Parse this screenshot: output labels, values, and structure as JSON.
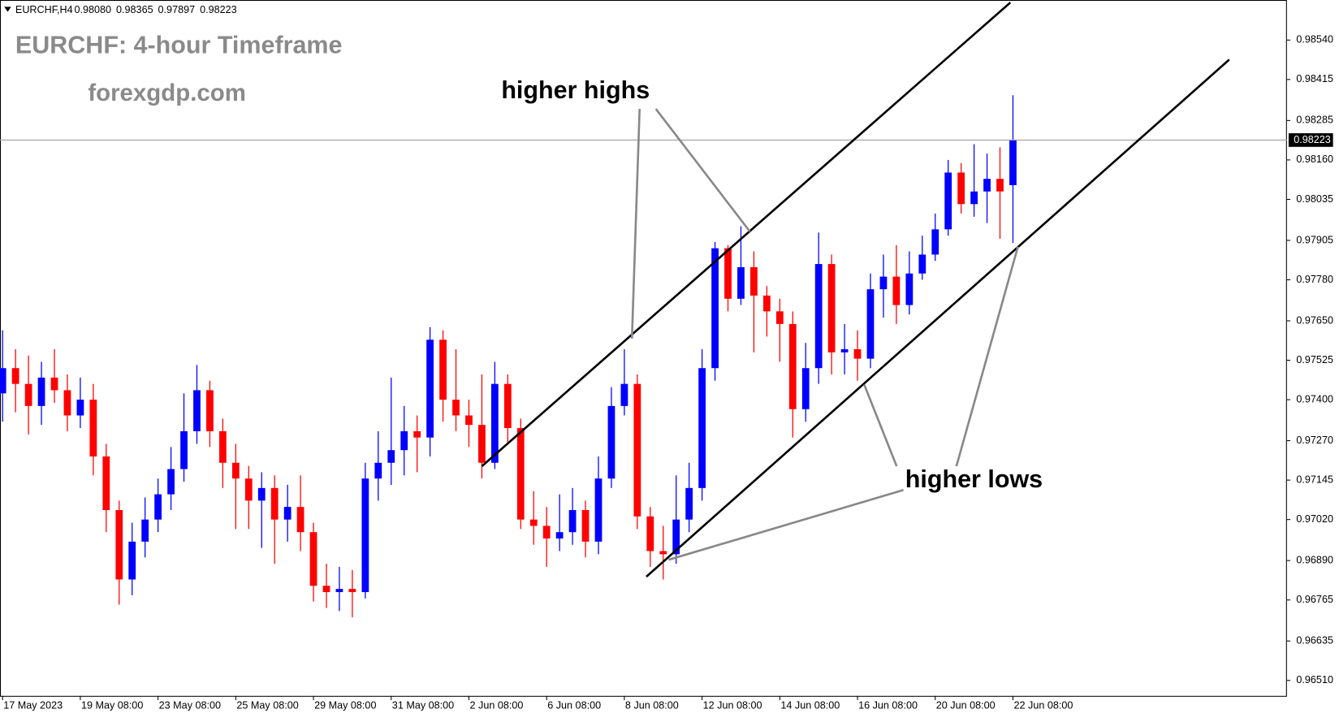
{
  "chart_data": {
    "type": "candlestick",
    "symbol": "EURCHF,H4",
    "quote_labels": [
      "0.98080",
      "0.98365",
      "0.97897",
      "0.98223"
    ],
    "title": "EURCHF: 4-hour Timeframe",
    "subtitle": "forexgdp.com",
    "up_color": "#0000ff",
    "down_color": "#ff0000",
    "open": [
      0.9742,
      0.975,
      0.9745,
      0.9738,
      0.9747,
      0.9743,
      0.9735,
      0.974,
      0.9722,
      0.9705,
      0.9683,
      0.9695,
      0.9702,
      0.971,
      0.9718,
      0.973,
      0.9743,
      0.973,
      0.972,
      0.9715,
      0.9708,
      0.9712,
      0.9702,
      0.9706,
      0.9698,
      0.9681,
      0.9679,
      0.968,
      0.9679,
      0.9715,
      0.972,
      0.9724,
      0.973,
      0.9728,
      0.9759,
      0.974,
      0.9735,
      0.9732,
      0.972,
      0.9745,
      0.9731,
      0.9702,
      0.97,
      0.9696,
      0.9698,
      0.9705,
      0.9695,
      0.9715,
      0.9738,
      0.9745,
      0.9703,
      0.9692,
      0.9691,
      0.9702,
      0.9712,
      0.975,
      0.9788,
      0.9772,
      0.9782,
      0.9773,
      0.9768,
      0.9764,
      0.9737,
      0.975,
      0.9783,
      0.9755,
      0.9756,
      0.9753,
      0.9775,
      0.9779,
      0.977,
      0.978,
      0.9786,
      0.9794,
      0.9812,
      0.9802,
      0.9806,
      0.981,
      0.9808
    ],
    "high": [
      0.9762,
      0.9756,
      0.9754,
      0.9752,
      0.9756,
      0.9748,
      0.9747,
      0.9745,
      0.9726,
      0.9708,
      0.9701,
      0.9709,
      0.9715,
      0.9725,
      0.9742,
      0.9751,
      0.9746,
      0.9734,
      0.9726,
      0.9719,
      0.9717,
      0.9716,
      0.9713,
      0.9716,
      0.9701,
      0.9688,
      0.9687,
      0.9686,
      0.972,
      0.973,
      0.9747,
      0.9738,
      0.9735,
      0.9763,
      0.9762,
      0.9756,
      0.974,
      0.9748,
      0.9752,
      0.9748,
      0.9734,
      0.9711,
      0.9706,
      0.971,
      0.9712,
      0.9708,
      0.9722,
      0.9744,
      0.9756,
      0.9748,
      0.9706,
      0.97,
      0.9716,
      0.972,
      0.9756,
      0.979,
      0.9789,
      0.9795,
      0.9787,
      0.9776,
      0.9772,
      0.9768,
      0.9758,
      0.9793,
      0.9786,
      0.9764,
      0.9762,
      0.978,
      0.9786,
      0.9789,
      0.9787,
      0.9792,
      0.9799,
      0.9816,
      0.9815,
      0.9821,
      0.9818,
      0.982,
      0.98365
    ],
    "low": [
      0.9733,
      0.9736,
      0.9729,
      0.9732,
      0.9739,
      0.973,
      0.9731,
      0.9716,
      0.9698,
      0.9675,
      0.9678,
      0.969,
      0.9698,
      0.9705,
      0.9714,
      0.9726,
      0.9725,
      0.9712,
      0.9699,
      0.9699,
      0.9693,
      0.9688,
      0.9695,
      0.9692,
      0.9676,
      0.9674,
      0.9673,
      0.9671,
      0.9677,
      0.9708,
      0.9713,
      0.9716,
      0.9717,
      0.9722,
      0.9733,
      0.973,
      0.9725,
      0.9715,
      0.9718,
      0.9726,
      0.9699,
      0.9694,
      0.9687,
      0.9692,
      0.9694,
      0.969,
      0.9691,
      0.9712,
      0.9735,
      0.9699,
      0.9687,
      0.9683,
      0.9688,
      0.9698,
      0.9708,
      0.9746,
      0.9768,
      0.977,
      0.9755,
      0.976,
      0.9752,
      0.9728,
      0.9733,
      0.9745,
      0.9748,
      0.9748,
      0.9746,
      0.975,
      0.9766,
      0.9764,
      0.9767,
      0.9778,
      0.9784,
      0.9792,
      0.9799,
      0.9798,
      0.9796,
      0.9791,
      0.97897
    ],
    "close": [
      0.975,
      0.9745,
      0.9738,
      0.9747,
      0.9743,
      0.9735,
      0.974,
      0.9722,
      0.9705,
      0.9683,
      0.9695,
      0.9702,
      0.971,
      0.9718,
      0.973,
      0.9743,
      0.973,
      0.972,
      0.9715,
      0.9708,
      0.9712,
      0.9702,
      0.9706,
      0.9698,
      0.9681,
      0.9679,
      0.968,
      0.9679,
      0.9715,
      0.972,
      0.9724,
      0.973,
      0.9728,
      0.9759,
      0.974,
      0.9735,
      0.9732,
      0.972,
      0.9745,
      0.9731,
      0.9702,
      0.97,
      0.9696,
      0.9698,
      0.9705,
      0.9695,
      0.9715,
      0.9738,
      0.9745,
      0.9703,
      0.9692,
      0.9691,
      0.9702,
      0.9712,
      0.975,
      0.9788,
      0.9772,
      0.9782,
      0.9773,
      0.9768,
      0.9764,
      0.9737,
      0.975,
      0.9783,
      0.9755,
      0.9756,
      0.9753,
      0.9775,
      0.9779,
      0.977,
      0.978,
      0.9786,
      0.9794,
      0.9812,
      0.9802,
      0.9806,
      0.981,
      0.9806,
      0.98223
    ],
    "price_label": "0.98223",
    "xlim": [
      -0.2,
      99.15
    ],
    "xticks": [
      {
        "value": 0,
        "label": "17 May 2023"
      },
      {
        "value": 6,
        "label": "19 May 08:00"
      },
      {
        "value": 12,
        "label": "23 May 08:00"
      },
      {
        "value": 18,
        "label": "25 May 08:00"
      },
      {
        "value": 24,
        "label": "29 May 08:00"
      },
      {
        "value": 30,
        "label": "31 May 08:00"
      },
      {
        "value": 36,
        "label": "2 Jun 08:00"
      },
      {
        "value": 42,
        "label": "6 Jun 08:00"
      },
      {
        "value": 48,
        "label": "8 Jun 08:00"
      },
      {
        "value": 54,
        "label": "12 Jun 08:00"
      },
      {
        "value": 60,
        "label": "14 Jun 08:00"
      },
      {
        "value": 66,
        "label": "16 Jun 08:00"
      },
      {
        "value": 72,
        "label": "20 Jun 08:00"
      },
      {
        "value": 78,
        "label": "22 Jun 08:00"
      }
    ],
    "ylim": [
      0.96461,
      0.98667
    ],
    "yticks": [
      {
        "value": 0.9854,
        "label": "0.98540"
      },
      {
        "value": 0.98415,
        "label": "0.98415"
      },
      {
        "value": 0.98285,
        "label": "0.98285"
      },
      {
        "value": 0.9816,
        "label": "0.98160"
      },
      {
        "value": 0.98035,
        "label": "0.98035"
      },
      {
        "value": 0.97905,
        "label": "0.97905"
      },
      {
        "value": 0.9778,
        "label": "0.97780"
      },
      {
        "value": 0.9765,
        "label": "0.97650"
      },
      {
        "value": 0.97525,
        "label": "0.97525"
      },
      {
        "value": 0.974,
        "label": "0.97400"
      },
      {
        "value": 0.9727,
        "label": "0.97270"
      },
      {
        "value": 0.97145,
        "label": "0.97145"
      },
      {
        "value": 0.9702,
        "label": "0.97020"
      },
      {
        "value": 0.9689,
        "label": "0.96890"
      },
      {
        "value": 0.96765,
        "label": "0.96765"
      },
      {
        "value": 0.96635,
        "label": "0.96635"
      },
      {
        "value": 0.9651,
        "label": "0.96510"
      }
    ],
    "trend_line_color": "#000000",
    "trend_lines": [
      {
        "x": [
          37.0,
          77.8
        ],
        "y": [
          0.97189,
          0.98659
        ]
      },
      {
        "x": [
          49.7,
          94.7
        ],
        "y": [
          0.96839,
          0.98478
        ]
      }
    ],
    "annotations": [
      "higher highs",
      "higher lows"
    ]
  }
}
